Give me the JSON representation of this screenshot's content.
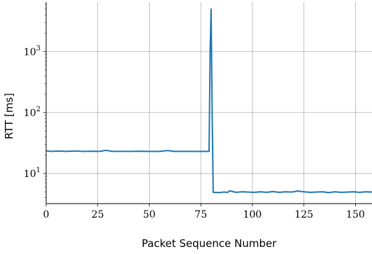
{
  "chart_data": {
    "type": "line",
    "title": "",
    "xlabel": "Packet Sequence Number",
    "ylabel": "RTT [ms]",
    "xlim": [
      0,
      158
    ],
    "ylim": [
      3.2,
      6500
    ],
    "yscale": "log",
    "grid": true,
    "x_ticks": [
      0,
      25,
      50,
      75,
      100,
      125,
      150
    ],
    "x_tick_labels": [
      "0",
      "25",
      "50",
      "75",
      "100",
      "125",
      "150"
    ],
    "y_ticks": [
      10,
      100,
      1000
    ],
    "y_tick_labels": [
      {
        "base": "10",
        "exp": "1"
      },
      {
        "base": "10",
        "exp": "2"
      },
      {
        "base": "10",
        "exp": "3"
      }
    ],
    "series": [
      {
        "color": "#1f77b4",
        "x": [
          0,
          3,
          6,
          10,
          14,
          18,
          22,
          26,
          29,
          32,
          36,
          40,
          45,
          50,
          55,
          59,
          62,
          66,
          70,
          74,
          77,
          79,
          79.5,
          80,
          80.5,
          81,
          84,
          86,
          88,
          89,
          92,
          95,
          98,
          101,
          104,
          107,
          110,
          113,
          116,
          119,
          122,
          125,
          128,
          131,
          134,
          137,
          140,
          143,
          146,
          149,
          152,
          155,
          158
        ],
        "y": [
          23.5,
          23.0,
          23.3,
          23.0,
          23.4,
          23.0,
          23.2,
          23.0,
          24.0,
          23.0,
          23.1,
          23.0,
          23.2,
          23.0,
          23.0,
          23.8,
          23.0,
          23.1,
          23.0,
          23.0,
          23.0,
          23.0,
          1000,
          5000,
          100,
          4.9,
          4.85,
          4.95,
          4.9,
          5.2,
          4.9,
          5.0,
          4.95,
          4.9,
          5.0,
          4.9,
          5.05,
          4.9,
          5.0,
          4.95,
          5.15,
          5.0,
          4.9,
          4.95,
          5.0,
          4.85,
          5.0,
          4.9,
          4.95,
          5.0,
          4.9,
          5.0,
          4.95
        ]
      }
    ]
  }
}
